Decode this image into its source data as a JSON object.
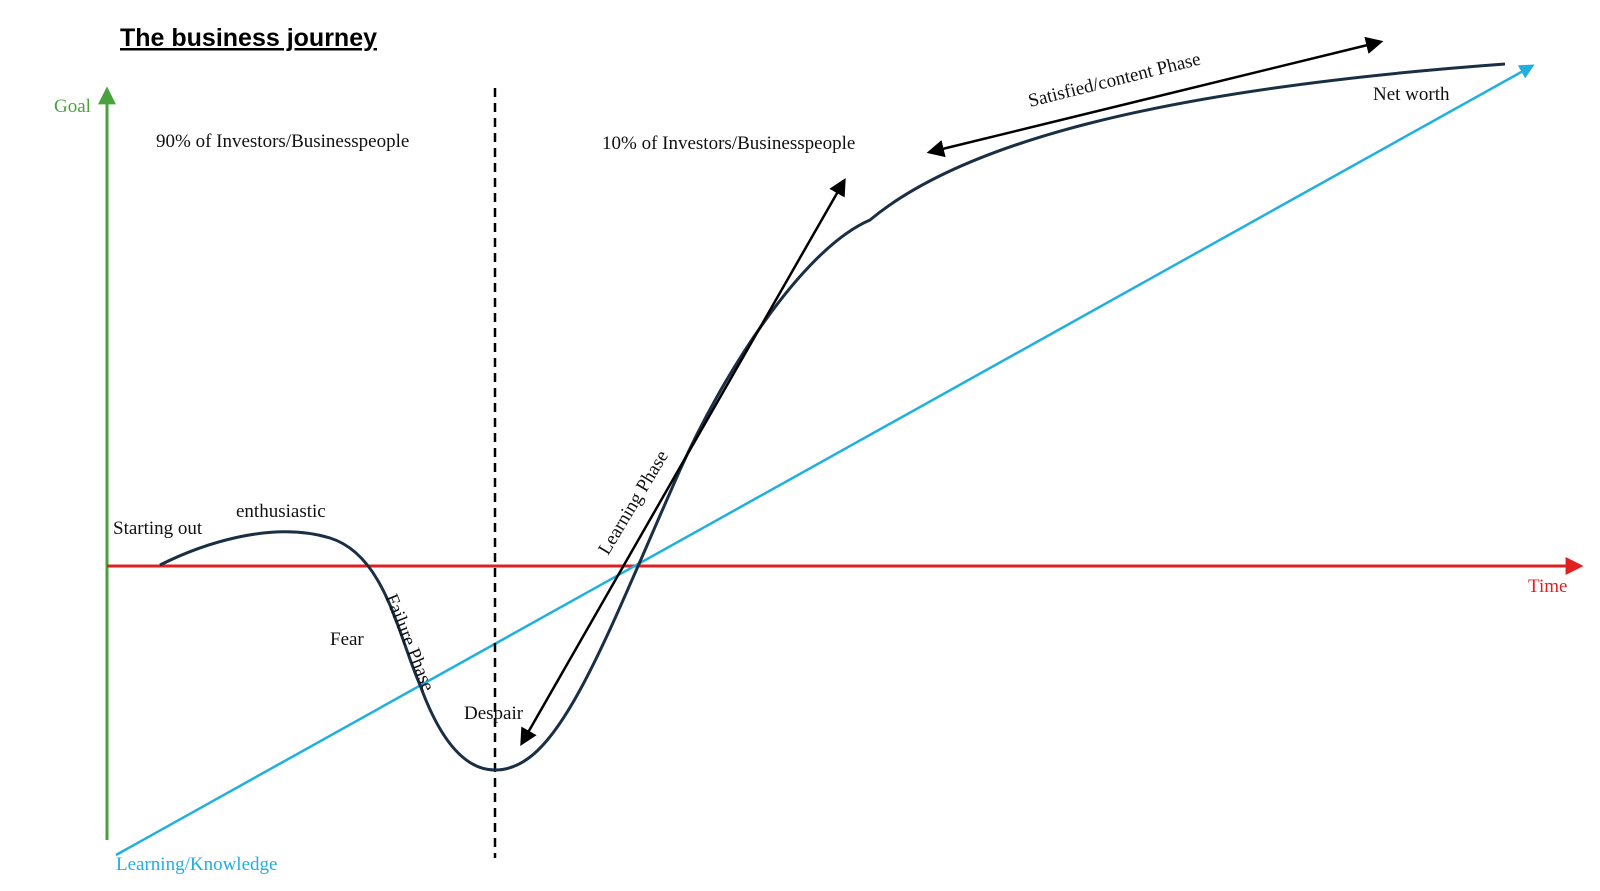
{
  "title": "The business journey",
  "axes": {
    "y_label": "Goal",
    "x_label": "Time",
    "learning_label": "Learning/Knowledge"
  },
  "regions": {
    "left": "90% of Investors/Businesspeople",
    "right": "10% of Investors/Businesspeople"
  },
  "stages": {
    "starting_out": "Starting out",
    "enthusiastic": "enthusiastic",
    "fear": "Fear",
    "despair": "Despair",
    "net_worth": "Net worth"
  },
  "phases": {
    "failure": "Failure Phase",
    "learning": "Learning Phase",
    "satisfied": "Satisfied/content Phase"
  },
  "colors": {
    "goal_axis": "#4aa23f",
    "time_axis": "#e02020",
    "learning_line": "#1fb0e0",
    "curve": "#1a2f44",
    "text": "#111111"
  }
}
